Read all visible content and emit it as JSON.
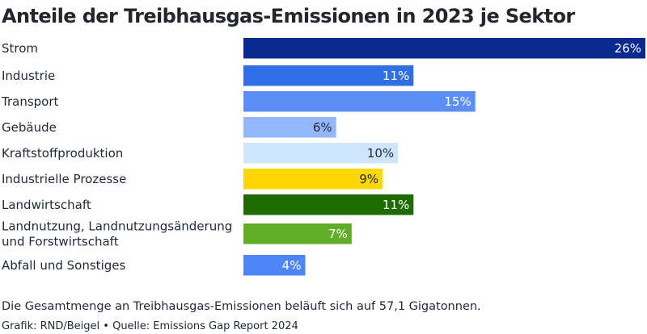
{
  "chart_data": {
    "type": "bar",
    "orientation": "horizontal",
    "title": "Anteile der Treibhausgas-Emissionen in 2023 je Sektor",
    "unit": "%",
    "categories": [
      [
        "Strom"
      ],
      [
        "Industrie"
      ],
      [
        "Transport"
      ],
      [
        "Gebäude"
      ],
      [
        "Kraftstoffproduktion"
      ],
      [
        "Industrielle Prozesse"
      ],
      [
        "Landwirtschaft"
      ],
      [
        "Landnutzung, Landnutzungsänderung",
        "und Forstwirtschaft"
      ],
      [
        "Abfall und Sonstiges"
      ]
    ],
    "values": [
      26,
      11,
      15,
      6,
      10,
      9,
      11,
      7,
      4
    ],
    "value_labels": [
      "26%",
      "11%",
      "15%",
      "6%",
      "10%",
      "9%",
      "11%",
      "7%",
      "4%"
    ],
    "colors": [
      "#0b2a8f",
      "#2f6fe4",
      "#5b8ff5",
      "#94b6fb",
      "#cfe5fb",
      "#ffd700",
      "#1e6b00",
      "#62ad27",
      "#4f86f7"
    ],
    "label_colors": [
      "#ffffff",
      "#ffffff",
      "#ffffff",
      "#1f2937",
      "#1f2937",
      "#1f2937",
      "#ffffff",
      "#ffffff",
      "#ffffff"
    ],
    "xlim": [
      0,
      26
    ],
    "grid": false,
    "legend": "none"
  },
  "note": "Die Gesamtmenge an Treibhausgas-Emissionen beläuft sich auf 57,1 Gigatonnen.",
  "source": "Grafik: RND/Beigel • Quelle: Emissions Gap Report 2024"
}
